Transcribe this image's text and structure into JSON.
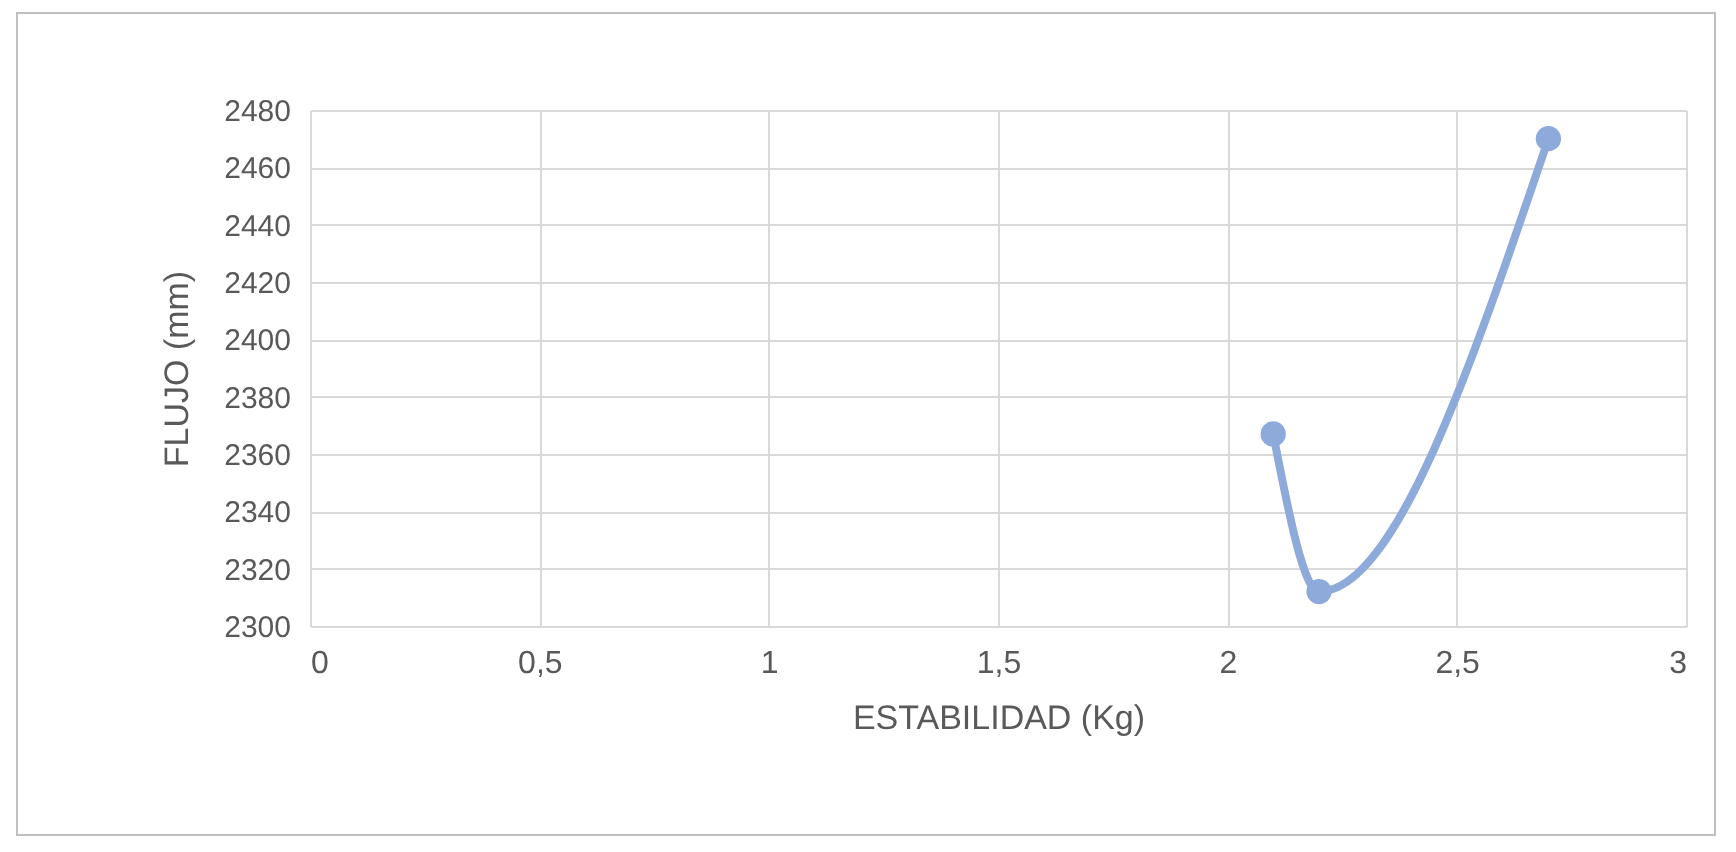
{
  "chart_data": {
    "type": "line",
    "xlabel": "ESTABILIDAD (Kg)",
    "ylabel": "FLUJO (mm)",
    "x": [
      2.1,
      2.2,
      2.7
    ],
    "series": [
      {
        "color": "#8eaadb",
        "values": [
          2367,
          2312,
          2470
        ]
      }
    ],
    "xlim": [
      0,
      3
    ],
    "xticks": [
      0,
      {
        "value": 0.5,
        "label": "0,5"
      },
      1,
      {
        "value": 1.5,
        "label": "1,5"
      },
      2,
      {
        "value": 2.5,
        "label": "2,5"
      },
      3
    ],
    "ylim": [
      2300,
      2480
    ],
    "yticks": [
      2300,
      2320,
      2340,
      2360,
      2380,
      2400,
      2420,
      2440,
      2460,
      2480
    ],
    "grid": true,
    "marker": "circle",
    "line_style": "solid"
  }
}
